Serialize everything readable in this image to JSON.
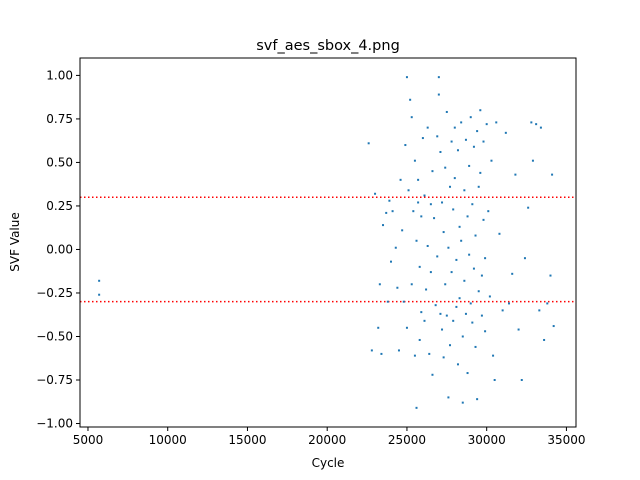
{
  "chart_data": {
    "type": "scatter",
    "title": "svf_aes_sbox_4.png",
    "xlabel": "Cycle",
    "ylabel": "SVF Value",
    "xlim": [
      4500,
      35600
    ],
    "ylim": [
      -1.02,
      1.1
    ],
    "x_ticks": [
      5000,
      10000,
      15000,
      20000,
      25000,
      30000,
      35000
    ],
    "x_tick_labels": [
      "5000",
      "10000",
      "15000",
      "20000",
      "25000",
      "30000",
      "35000"
    ],
    "y_ticks": [
      -1.0,
      -0.75,
      -0.5,
      -0.25,
      0.0,
      0.25,
      0.5,
      0.75,
      1.0
    ],
    "y_tick_labels": [
      "−1.00",
      "−0.75",
      "−0.50",
      "−0.25",
      "0.00",
      "0.25",
      "0.50",
      "0.75",
      "1.00"
    ],
    "grid": false,
    "marker_color": "#1f77b4",
    "threshold_lines": [
      {
        "y": 0.3,
        "color": "#ff0000",
        "style": "dotted"
      },
      {
        "y": -0.3,
        "color": "#ff0000",
        "style": "dotted"
      }
    ],
    "series": [
      {
        "points": [
          [
            5700,
            -0.18
          ],
          [
            5700,
            -0.26
          ],
          [
            22600,
            0.61
          ],
          [
            22800,
            -0.58
          ],
          [
            23000,
            0.32
          ],
          [
            23200,
            -0.45
          ],
          [
            23300,
            -0.2
          ],
          [
            23400,
            -0.6
          ],
          [
            23500,
            0.14
          ],
          [
            23700,
            0.21
          ],
          [
            23800,
            -0.3
          ],
          [
            23900,
            0.28
          ],
          [
            24000,
            -0.07
          ],
          [
            24100,
            0.22
          ],
          [
            24300,
            0.01
          ],
          [
            24400,
            -0.22
          ],
          [
            24500,
            -0.58
          ],
          [
            24600,
            0.4
          ],
          [
            24700,
            0.11
          ],
          [
            24800,
            -0.3
          ],
          [
            24900,
            0.6
          ],
          [
            25000,
            0.99
          ],
          [
            25000,
            -0.45
          ],
          [
            25100,
            0.34
          ],
          [
            25200,
            0.86
          ],
          [
            25300,
            0.76
          ],
          [
            25300,
            -0.2
          ],
          [
            25400,
            0.22
          ],
          [
            25500,
            0.51
          ],
          [
            25500,
            -0.61
          ],
          [
            25600,
            0.05
          ],
          [
            25600,
            -0.91
          ],
          [
            25700,
            0.4
          ],
          [
            25700,
            0.27
          ],
          [
            25800,
            -0.1
          ],
          [
            25800,
            -0.52
          ],
          [
            25900,
            0.19
          ],
          [
            25900,
            -0.36
          ],
          [
            26000,
            0.64
          ],
          [
            26100,
            0.31
          ],
          [
            26100,
            -0.41
          ],
          [
            26200,
            -0.23
          ],
          [
            26300,
            0.7
          ],
          [
            26300,
            0.02
          ],
          [
            26400,
            -0.6
          ],
          [
            26500,
            0.26
          ],
          [
            26500,
            -0.13
          ],
          [
            26600,
            0.45
          ],
          [
            26600,
            -0.72
          ],
          [
            26700,
            0.18
          ],
          [
            26800,
            -0.32
          ],
          [
            26900,
            0.65
          ],
          [
            26900,
            -0.04
          ],
          [
            27000,
            0.99
          ],
          [
            27000,
            0.89
          ],
          [
            27100,
            0.56
          ],
          [
            27100,
            -0.37
          ],
          [
            27200,
            0.27
          ],
          [
            27200,
            -0.46
          ],
          [
            27300,
            0.1
          ],
          [
            27300,
            -0.62
          ],
          [
            27400,
            0.47
          ],
          [
            27400,
            -0.2
          ],
          [
            27500,
            0.79
          ],
          [
            27500,
            -0.38
          ],
          [
            27600,
            0.01
          ],
          [
            27600,
            -0.85
          ],
          [
            27700,
            0.36
          ],
          [
            27700,
            -0.55
          ],
          [
            27800,
            0.62
          ],
          [
            27800,
            -0.13
          ],
          [
            27900,
            0.23
          ],
          [
            27900,
            -0.41
          ],
          [
            28000,
            0.7
          ],
          [
            28000,
            0.41
          ],
          [
            28100,
            -0.06
          ],
          [
            28100,
            -0.33
          ],
          [
            28200,
            0.57
          ],
          [
            28200,
            -0.66
          ],
          [
            28300,
            0.13
          ],
          [
            28300,
            -0.28
          ],
          [
            28400,
            0.73
          ],
          [
            28400,
            0.05
          ],
          [
            28500,
            -0.5
          ],
          [
            28500,
            -0.88
          ],
          [
            28600,
            0.34
          ],
          [
            28600,
            -0.18
          ],
          [
            28700,
            0.63
          ],
          [
            28700,
            -0.37
          ],
          [
            28800,
            0.19
          ],
          [
            28800,
            -0.71
          ],
          [
            28900,
            0.48
          ],
          [
            28900,
            -0.03
          ],
          [
            29000,
            0.76
          ],
          [
            29000,
            -0.31
          ],
          [
            29100,
            0.26
          ],
          [
            29100,
            -0.42
          ],
          [
            29200,
            0.59
          ],
          [
            29200,
            -0.11
          ],
          [
            29300,
            0.08
          ],
          [
            29300,
            -0.56
          ],
          [
            29400,
            0.68
          ],
          [
            29400,
            -0.86
          ],
          [
            29500,
            0.36
          ],
          [
            29500,
            -0.24
          ],
          [
            29600,
            0.8
          ],
          [
            29600,
            0.44
          ],
          [
            29700,
            -0.15
          ],
          [
            29700,
            -0.38
          ],
          [
            29800,
            0.62
          ],
          [
            29800,
            0.17
          ],
          [
            29900,
            -0.05
          ],
          [
            29900,
            -0.47
          ],
          [
            30000,
            0.72
          ],
          [
            30100,
            0.22
          ],
          [
            30200,
            -0.27
          ],
          [
            30300,
            0.51
          ],
          [
            30400,
            -0.61
          ],
          [
            30500,
            -0.75
          ],
          [
            30600,
            0.73
          ],
          [
            30800,
            0.09
          ],
          [
            31000,
            -0.35
          ],
          [
            31200,
            0.67
          ],
          [
            31400,
            -0.31
          ],
          [
            31600,
            -0.14
          ],
          [
            31800,
            0.43
          ],
          [
            32000,
            -0.46
          ],
          [
            32200,
            -0.75
          ],
          [
            32400,
            -0.05
          ],
          [
            32600,
            0.24
          ],
          [
            32800,
            0.73
          ],
          [
            32900,
            0.51
          ],
          [
            33100,
            0.72
          ],
          [
            33300,
            -0.35
          ],
          [
            33400,
            0.7
          ],
          [
            33600,
            -0.52
          ],
          [
            33800,
            -0.31
          ],
          [
            34000,
            -0.15
          ],
          [
            34100,
            0.43
          ],
          [
            34200,
            -0.44
          ]
        ]
      }
    ]
  }
}
